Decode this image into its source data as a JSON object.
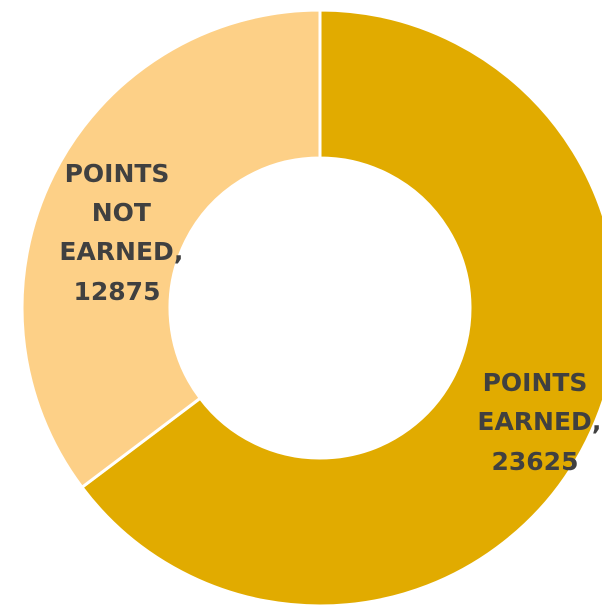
{
  "chart_data": {
    "type": "donut",
    "categories": [
      "POINTS EARNED",
      "POINTS NOT EARNED"
    ],
    "values": [
      23625,
      12875
    ],
    "colors": [
      "#e1ab00",
      "#fdd087"
    ],
    "label_separator": ","
  }
}
